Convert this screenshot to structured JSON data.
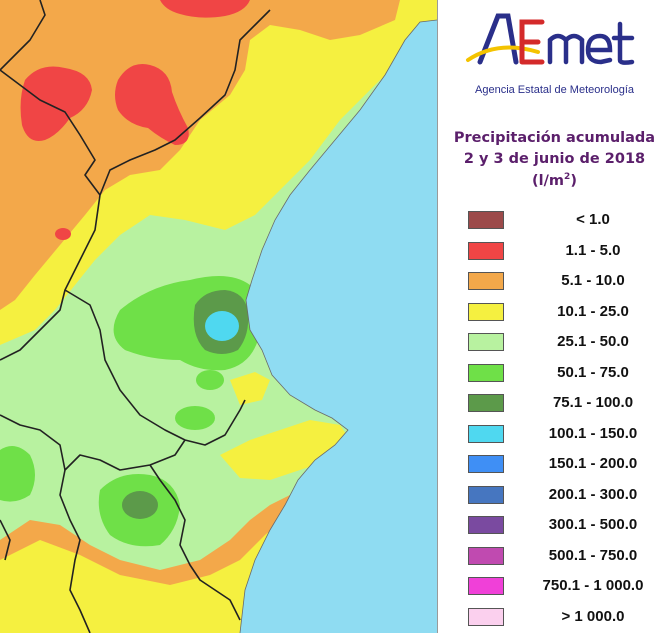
{
  "logo": {
    "text": "AEmet",
    "agency": "Agencia Estatal de Meteorología"
  },
  "title": {
    "line1": "Precipitación acumulada",
    "line2": "2 y 3 de junio de 2018",
    "unit_base": "(l/m",
    "unit_sup": "2",
    "unit_close": ")"
  },
  "legend": [
    {
      "label": "< 1.0",
      "color": "#9c4a4a"
    },
    {
      "label": "1.1 - 5.0",
      "color": "#f04545"
    },
    {
      "label": "5.1 - 10.0",
      "color": "#f3a84a"
    },
    {
      "label": "10.1 - 25.0",
      "color": "#f5f040"
    },
    {
      "label": "25.1 - 50.0",
      "color": "#b8f2a0"
    },
    {
      "label": "50.1 - 75.0",
      "color": "#6fe048"
    },
    {
      "label": "75.1 - 100.0",
      "color": "#5c9a4a"
    },
    {
      "label": "100.1 - 150.0",
      "color": "#4fd8f0"
    },
    {
      "label": "150.1 - 200.0",
      "color": "#3f8ff5"
    },
    {
      "label": "200.1 - 300.0",
      "color": "#4676c0"
    },
    {
      "label": "300.1 - 500.0",
      "color": "#7a4aa0"
    },
    {
      "label": "500.1 - 750.0",
      "color": "#c04ab0"
    },
    {
      "label": "750.1 - 1 000.0",
      "color": "#f040d8"
    },
    {
      "label": "> 1 000.0",
      "color": "#fbd0ee"
    }
  ],
  "colors": {
    "sea": "#8fdcf2",
    "brand_blue": "#2a2f8a",
    "brand_red": "#d42a2a",
    "brand_yellow": "#f4c300",
    "title_purple": "#5b1f6b"
  }
}
